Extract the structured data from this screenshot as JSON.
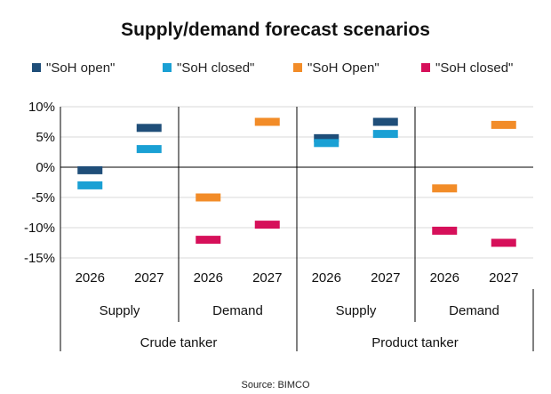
{
  "chart_data": {
    "type": "scatter",
    "title": "Supply/demand forecast scenarios",
    "source": "Source: BIMCO",
    "y_axis": {
      "min": -15,
      "max": 10,
      "step": 5,
      "format": "percent",
      "tick_labels": [
        "10%",
        "5%",
        "0%",
        "-5%",
        "-10%",
        "-15%"
      ]
    },
    "grid": true,
    "legend_position": "top",
    "series": [
      {
        "name": "\"SoH open\"",
        "color": "#1f4e79"
      },
      {
        "name": "\"SoH closed\"",
        "color": "#1aa0d4"
      },
      {
        "name": "\"SoH Open\"",
        "color": "#f28c28"
      },
      {
        "name": "\"SoH closed\"",
        "color": "#d6105a"
      }
    ],
    "categories": [
      {
        "year": "2026",
        "group": "Supply",
        "segment": "Crude tanker",
        "points": [
          {
            "series": 0,
            "value": -0.5
          },
          {
            "series": 1,
            "value": -3.0
          }
        ]
      },
      {
        "year": "2027",
        "group": "Supply",
        "segment": "Crude tanker",
        "points": [
          {
            "series": 0,
            "value": 6.5
          },
          {
            "series": 1,
            "value": 3.0
          }
        ]
      },
      {
        "year": "2026",
        "group": "Demand",
        "segment": "Crude tanker",
        "points": [
          {
            "series": 2,
            "value": -5.0
          },
          {
            "series": 3,
            "value": -12.0
          }
        ]
      },
      {
        "year": "2027",
        "group": "Demand",
        "segment": "Crude tanker",
        "points": [
          {
            "series": 2,
            "value": 7.5
          },
          {
            "series": 3,
            "value": -9.5
          }
        ]
      },
      {
        "year": "2026",
        "group": "Supply",
        "segment": "Product tanker",
        "points": [
          {
            "series": 0,
            "value": 4.8
          },
          {
            "series": 1,
            "value": 4.0
          }
        ]
      },
      {
        "year": "2027",
        "group": "Supply",
        "segment": "Product tanker",
        "points": [
          {
            "series": 0,
            "value": 7.5
          },
          {
            "series": 1,
            "value": 5.5
          }
        ]
      },
      {
        "year": "2026",
        "group": "Demand",
        "segment": "Product tanker",
        "points": [
          {
            "series": 2,
            "value": -3.5
          },
          {
            "series": 3,
            "value": -10.5
          }
        ]
      },
      {
        "year": "2027",
        "group": "Demand",
        "segment": "Product tanker",
        "points": [
          {
            "series": 2,
            "value": 7.0
          },
          {
            "series": 3,
            "value": -12.5
          }
        ]
      }
    ],
    "groups": [
      {
        "label": "Supply"
      },
      {
        "label": "Demand"
      },
      {
        "label": "Supply"
      },
      {
        "label": "Demand"
      }
    ],
    "segments": [
      {
        "label": "Crude tanker"
      },
      {
        "label": "Product tanker"
      }
    ]
  }
}
